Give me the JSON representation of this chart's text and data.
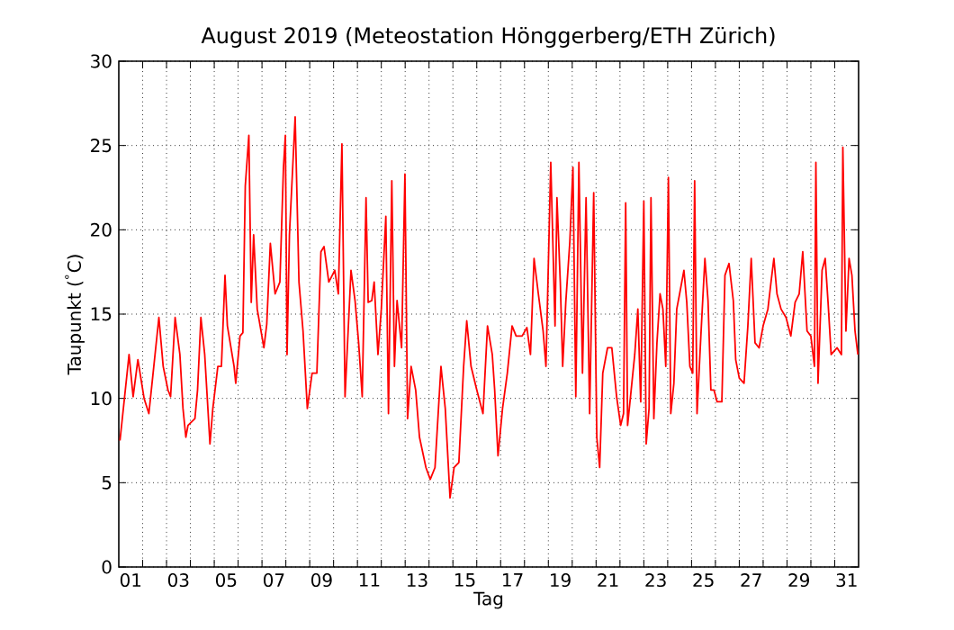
{
  "chart_data": {
    "type": "line",
    "title": "August 2019  (Meteostation Hönggerberg/ETH Zürich)",
    "xlabel": "Tag",
    "ylabel": "Taupunkt ($^{°}$C)",
    "grid": true,
    "marker": "none",
    "line_style": "solid",
    "xlim": [
      1,
      32
    ],
    "ylim": [
      0,
      30
    ],
    "yticks": [
      0,
      5,
      10,
      15,
      20,
      25,
      30
    ],
    "xticks": [
      {
        "value": 1.5,
        "label": "01"
      },
      {
        "value": 3.5,
        "label": "03"
      },
      {
        "value": 5.5,
        "label": "05"
      },
      {
        "value": 7.5,
        "label": "07"
      },
      {
        "value": 9.5,
        "label": "09"
      },
      {
        "value": 11.5,
        "label": "11"
      },
      {
        "value": 13.5,
        "label": "13"
      },
      {
        "value": 15.5,
        "label": "15"
      },
      {
        "value": 17.5,
        "label": "17"
      },
      {
        "value": 19.5,
        "label": "19"
      },
      {
        "value": 21.5,
        "label": "21"
      },
      {
        "value": 23.5,
        "label": "23"
      },
      {
        "value": 25.5,
        "label": "25"
      },
      {
        "value": 27.5,
        "label": "27"
      },
      {
        "value": 29.5,
        "label": "29"
      },
      {
        "value": 31.5,
        "label": "31"
      },
      {
        "value": 2,
        "label": null
      },
      {
        "value": 3,
        "label": null
      },
      {
        "value": 4,
        "label": null
      },
      {
        "value": 5,
        "label": null
      },
      {
        "value": 6,
        "label": null
      },
      {
        "value": 7,
        "label": null
      },
      {
        "value": 8,
        "label": null
      },
      {
        "value": 9,
        "label": null
      },
      {
        "value": 10,
        "label": null
      },
      {
        "value": 11,
        "label": null
      },
      {
        "value": 12,
        "label": null
      },
      {
        "value": 13,
        "label": null
      },
      {
        "value": 14,
        "label": null
      },
      {
        "value": 15,
        "label": null
      },
      {
        "value": 16,
        "label": null
      },
      {
        "value": 17,
        "label": null
      },
      {
        "value": 18,
        "label": null
      },
      {
        "value": 19,
        "label": null
      },
      {
        "value": 20,
        "label": null
      },
      {
        "value": 21,
        "label": null
      },
      {
        "value": 22,
        "label": null
      },
      {
        "value": 23,
        "label": null
      },
      {
        "value": 24,
        "label": null
      },
      {
        "value": 25,
        "label": null
      },
      {
        "value": 26,
        "label": null
      },
      {
        "value": 27,
        "label": null
      },
      {
        "value": 28,
        "label": null
      },
      {
        "value": 29,
        "label": null
      },
      {
        "value": 30,
        "label": null
      },
      {
        "value": 31,
        "label": null
      }
    ],
    "series": [
      {
        "color": "#ff0000",
        "x": [
          1.05,
          1.43,
          1.6,
          1.8,
          2.06,
          2.26,
          2.43,
          2.68,
          2.86,
          3.06,
          3.17,
          3.36,
          3.56,
          3.69,
          3.81,
          3.9,
          4.19,
          4.3,
          4.44,
          4.6,
          4.82,
          4.94,
          5.15,
          5.3,
          5.45,
          5.55,
          5.83,
          5.9,
          6.08,
          6.2,
          6.3,
          6.45,
          6.55,
          6.65,
          6.8,
          7.08,
          7.2,
          7.35,
          7.55,
          7.75,
          7.9,
          7.98,
          8.05,
          8.15,
          8.39,
          8.55,
          8.72,
          8.9,
          9.1,
          9.3,
          9.47,
          9.6,
          9.8,
          10.05,
          10.2,
          10.35,
          10.48,
          10.73,
          10.9,
          11.05,
          11.2,
          11.36,
          11.45,
          11.6,
          11.7,
          11.86,
          12.0,
          12.19,
          12.3,
          12.44,
          12.55,
          12.66,
          12.85,
          12.99,
          13.1,
          13.25,
          13.44,
          13.6,
          13.87,
          14.05,
          14.25,
          14.5,
          14.68,
          14.88,
          15.05,
          15.25,
          15.45,
          15.58,
          15.76,
          16.0,
          16.26,
          16.45,
          16.65,
          16.75,
          16.89,
          17.08,
          17.28,
          17.48,
          17.65,
          17.9,
          18.1,
          18.25,
          18.4,
          18.58,
          18.78,
          18.9,
          19.1,
          19.28,
          19.36,
          19.5,
          19.6,
          19.73,
          19.9,
          20.03,
          20.15,
          20.28,
          20.43,
          20.58,
          20.73,
          20.9,
          21.03,
          21.15,
          21.28,
          21.48,
          21.66,
          21.86,
          22.03,
          22.15,
          22.24,
          22.32,
          22.47,
          22.62,
          22.75,
          22.87,
          23.0,
          23.1,
          23.22,
          23.3,
          23.42,
          23.55,
          23.68,
          23.8,
          23.92,
          24.03,
          24.13,
          24.26,
          24.38,
          24.5,
          24.68,
          24.8,
          24.93,
          25.05,
          25.13,
          25.23,
          25.39,
          25.56,
          25.69,
          25.81,
          25.94,
          26.07,
          26.27,
          26.4,
          26.57,
          26.75,
          26.85,
          27.0,
          27.2,
          27.36,
          27.5,
          27.66,
          27.83,
          28.0,
          28.2,
          28.33,
          28.45,
          28.58,
          28.75,
          28.96,
          29.16,
          29.34,
          29.51,
          29.66,
          29.84,
          30.0,
          30.15,
          30.21,
          30.3,
          30.47,
          30.6,
          30.72,
          30.85,
          31.1,
          31.28,
          31.34,
          31.47,
          31.6,
          31.72,
          31.85,
          31.97
        ],
        "values": [
          7.5,
          12.6,
          10.1,
          12.3,
          10.0,
          9.1,
          11.4,
          14.8,
          11.9,
          10.5,
          10.1,
          14.8,
          12.6,
          9.4,
          7.7,
          8.4,
          8.8,
          10.5,
          14.8,
          12.6,
          7.3,
          9.4,
          11.9,
          11.9,
          17.3,
          14.3,
          11.9,
          10.9,
          13.7,
          13.9,
          22.6,
          25.6,
          15.7,
          19.7,
          15.3,
          13.0,
          14.4,
          19.2,
          16.2,
          16.9,
          23.7,
          25.6,
          12.6,
          19.7,
          26.7,
          16.9,
          14.0,
          9.4,
          11.5,
          11.5,
          18.7,
          19.0,
          16.9,
          17.6,
          16.2,
          25.1,
          10.1,
          17.6,
          15.8,
          13.3,
          10.1,
          21.9,
          15.7,
          15.8,
          16.9,
          12.6,
          15.3,
          20.8,
          9.1,
          22.9,
          11.9,
          15.8,
          13.0,
          23.3,
          8.8,
          11.9,
          10.5,
          7.7,
          5.9,
          5.2,
          5.9,
          11.9,
          9.4,
          4.1,
          5.9,
          6.2,
          11.9,
          14.6,
          11.9,
          10.5,
          9.1,
          14.3,
          12.6,
          10.5,
          6.6,
          9.4,
          11.5,
          14.3,
          13.7,
          13.7,
          14.2,
          12.6,
          18.3,
          16.2,
          14.0,
          11.9,
          24.0,
          14.3,
          21.9,
          16.9,
          11.9,
          15.7,
          19.3,
          23.7,
          10.1,
          24.0,
          11.5,
          21.9,
          9.1,
          22.2,
          7.7,
          5.9,
          11.5,
          13.0,
          13.0,
          10.1,
          8.4,
          9.1,
          21.6,
          8.4,
          10.5,
          12.6,
          15.3,
          9.8,
          21.7,
          7.3,
          9.4,
          21.9,
          8.8,
          13.3,
          16.2,
          15.3,
          11.9,
          23.1,
          9.1,
          10.9,
          15.3,
          16.2,
          17.6,
          15.7,
          11.9,
          11.5,
          22.9,
          9.1,
          13.7,
          18.3,
          15.8,
          10.5,
          10.5,
          9.8,
          9.8,
          17.3,
          18.0,
          15.8,
          12.3,
          11.2,
          10.9,
          14.3,
          18.3,
          13.3,
          13.0,
          14.3,
          15.3,
          16.9,
          18.3,
          16.2,
          15.3,
          14.8,
          13.7,
          15.7,
          16.2,
          18.7,
          14.0,
          13.7,
          11.9,
          24.0,
          10.9,
          17.6,
          18.3,
          15.7,
          12.6,
          13.0,
          12.6,
          24.9,
          14.0,
          18.3,
          17.3,
          14.0,
          12.6
        ]
      }
    ]
  }
}
